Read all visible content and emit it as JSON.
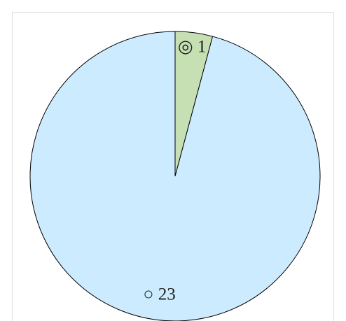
{
  "chart_data": {
    "type": "pie",
    "categories": [
      "◎",
      "○"
    ],
    "values": [
      1,
      23
    ],
    "colors": [
      "#c6e0b4",
      "#cdebff"
    ]
  }
}
